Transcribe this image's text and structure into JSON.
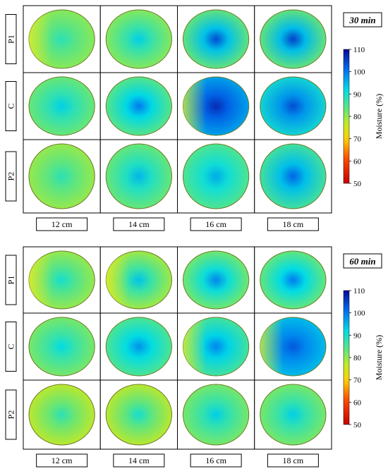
{
  "chart_data": {
    "type": "heatmap",
    "colorbar": {
      "label": "Moisture (%)",
      "range": [
        50,
        110
      ],
      "ticks": [
        "110",
        "100",
        "90",
        "80",
        "70",
        "60",
        "50"
      ],
      "colormap": "jet-reversed"
    },
    "columns": [
      "12 cm",
      "14 cm",
      "16 cm",
      "18 cm"
    ],
    "rows": [
      "P1",
      "C",
      "P2"
    ],
    "panels": [
      {
        "time": "30 min",
        "center_moisture": [
          [
            88,
            93,
            104,
            105
          ],
          [
            93,
            100,
            107,
            104
          ],
          [
            88,
            95,
            96,
            102
          ]
        ],
        "edge_moisture": [
          [
            80,
            80,
            82,
            82
          ],
          [
            82,
            83,
            96,
            90
          ],
          [
            79,
            82,
            84,
            85
          ]
        ],
        "left_edge_yellow": [
          true,
          false,
          false,
          false,
          false,
          false,
          true,
          false,
          false,
          false,
          false,
          false
        ]
      },
      {
        "time": "60 min",
        "center_moisture": [
          [
            90,
            94,
            99,
            100
          ],
          [
            92,
            98,
            99,
            103
          ],
          [
            88,
            90,
            93,
            93
          ]
        ],
        "edge_moisture": [
          [
            79,
            78,
            81,
            82
          ],
          [
            81,
            84,
            85,
            94
          ],
          [
            76,
            76,
            81,
            81
          ]
        ],
        "left_edge_yellow": [
          true,
          true,
          false,
          false,
          false,
          false,
          true,
          true,
          false,
          false,
          false,
          false
        ]
      }
    ]
  }
}
